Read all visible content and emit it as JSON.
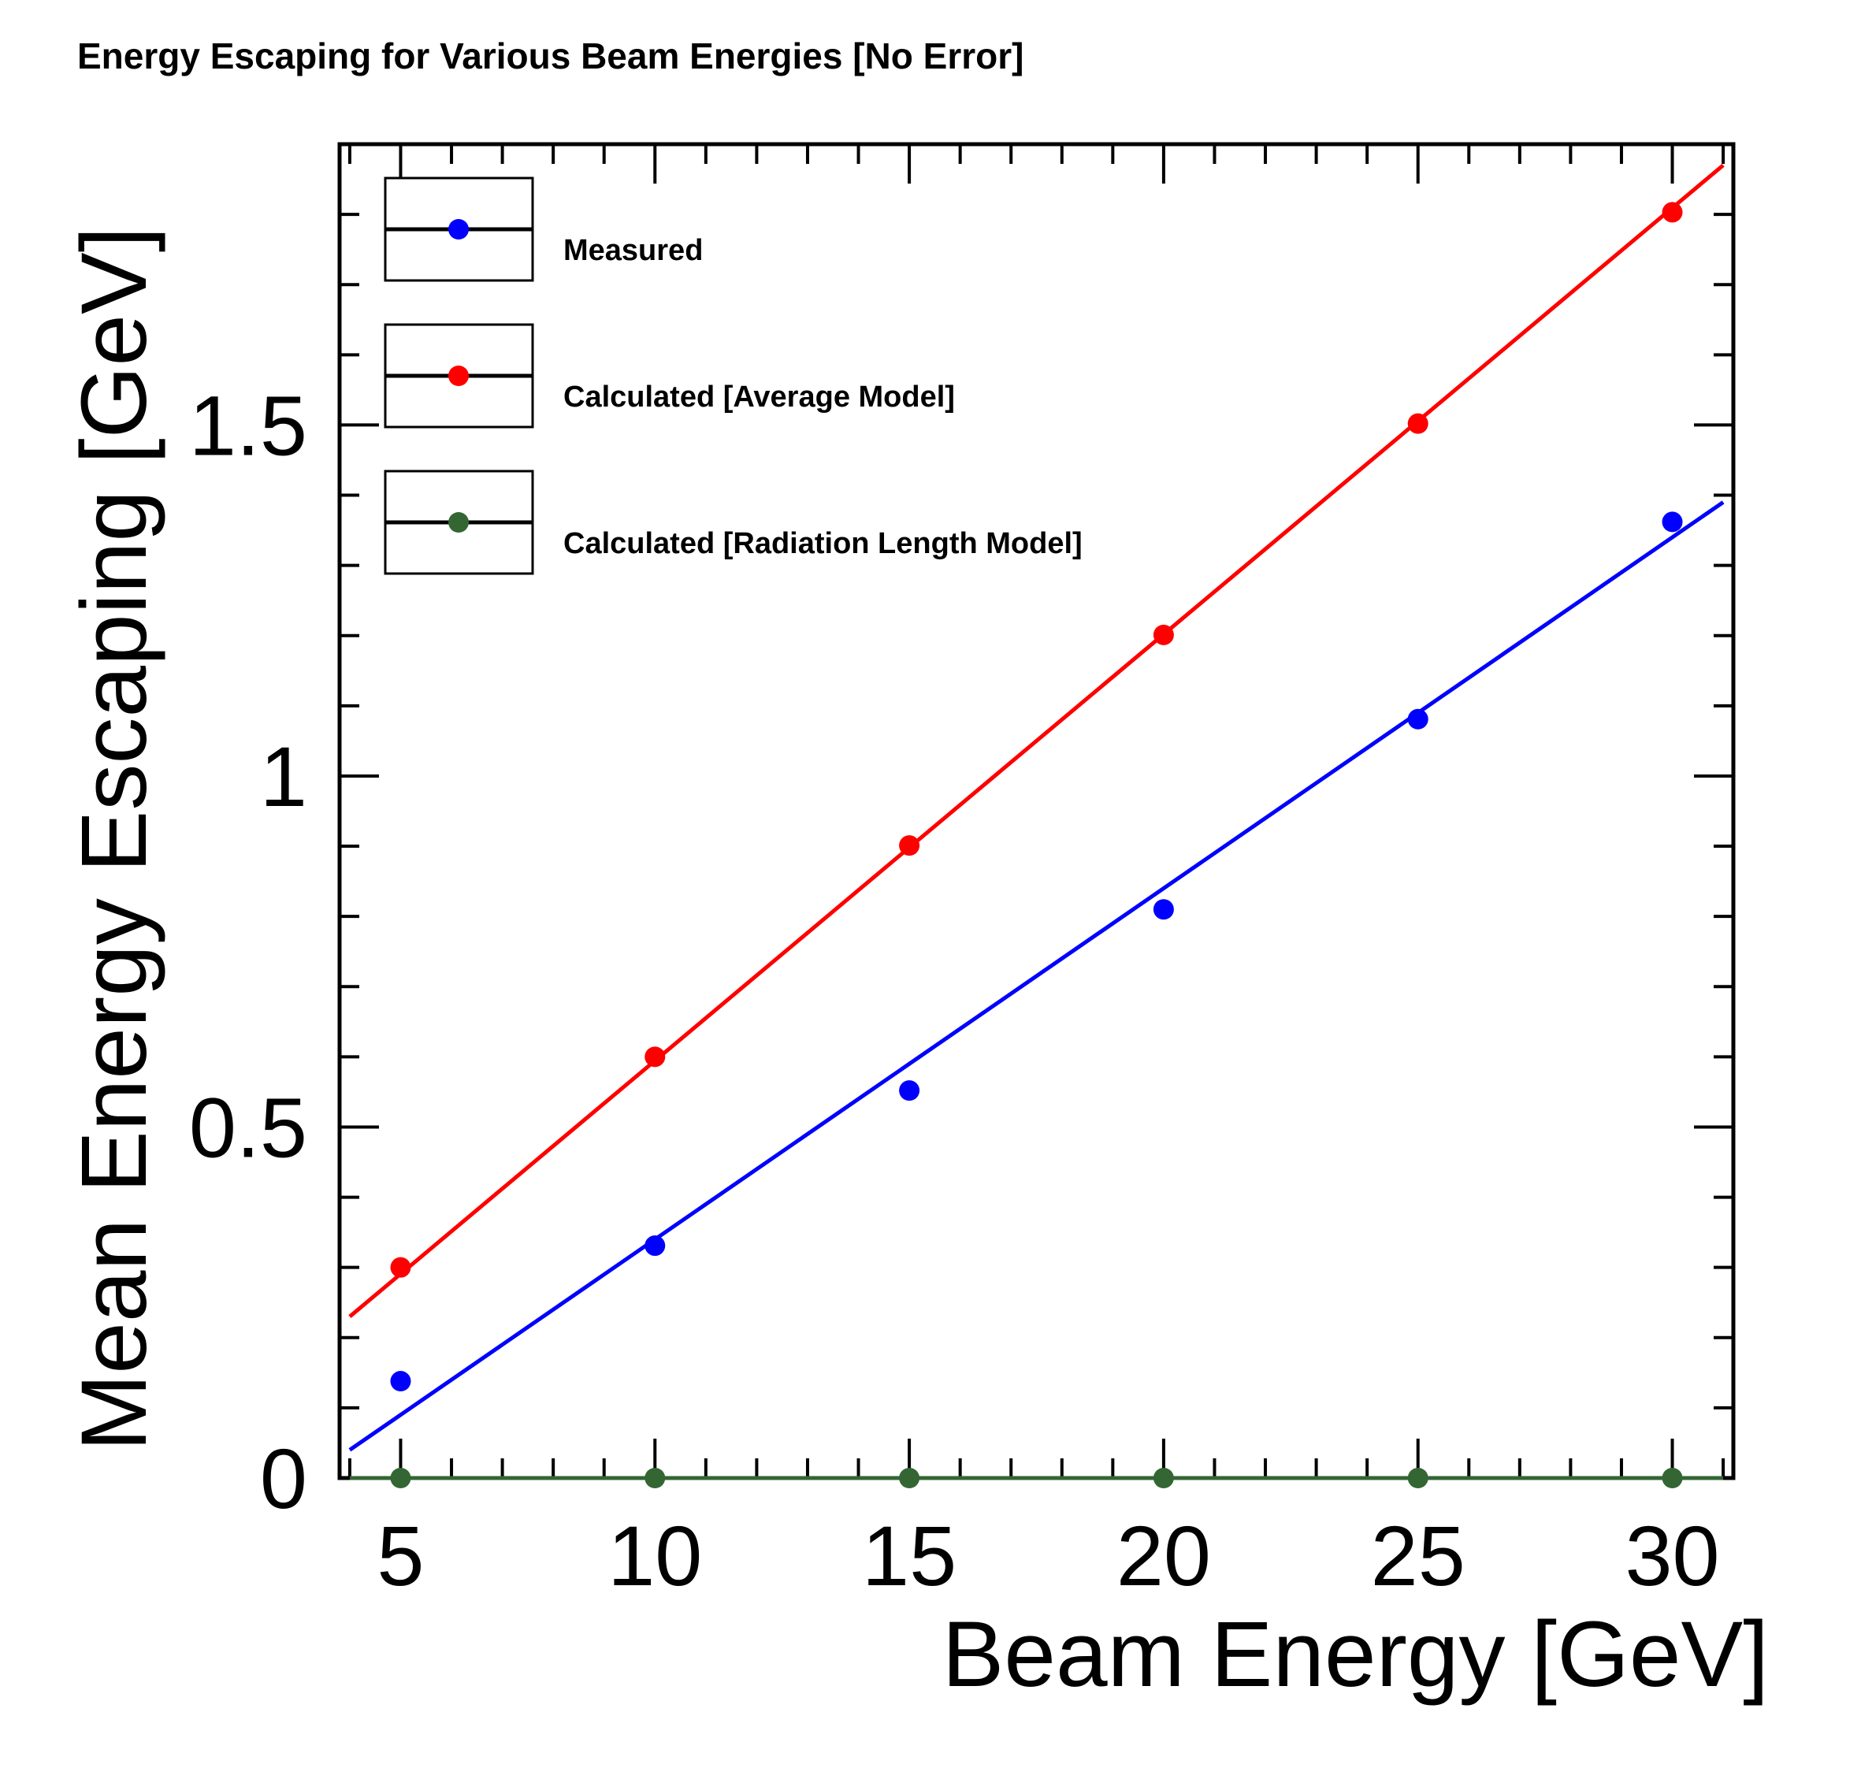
{
  "chart_data": {
    "type": "scatter",
    "title": "Energy Escaping for Various Beam Energies [No Error]",
    "xlabel": "Beam Energy [GeV]",
    "ylabel": "Mean Energy Escaping [GeV]",
    "xlim": [
      3.8,
      31.2
    ],
    "ylim": [
      0,
      1.9
    ],
    "x_ticks": [
      5,
      10,
      15,
      20,
      25,
      30
    ],
    "x_tick_labels": [
      "5",
      "10",
      "15",
      "20",
      "25",
      "30"
    ],
    "y_ticks": [
      0,
      0.5,
      1,
      1.5
    ],
    "y_tick_labels": [
      "0",
      "0.5",
      "1",
      "1.5"
    ],
    "legend_position": "top-left",
    "series": [
      {
        "name": "Measured",
        "color": "#0000ff",
        "x": [
          5,
          10,
          15,
          20,
          25,
          30
        ],
        "y": [
          0.138,
          0.331,
          0.552,
          0.81,
          1.081,
          1.362
        ],
        "fit_line": {
          "x": [
            4,
            31
          ],
          "y": [
            0.04,
            1.39
          ]
        }
      },
      {
        "name": "Calculated [Average Model]",
        "color": "#ff0000",
        "x": [
          5,
          10,
          15,
          20,
          25,
          30
        ],
        "y": [
          0.3,
          0.6,
          0.901,
          1.201,
          1.502,
          1.803
        ],
        "fit_line": {
          "x": [
            4,
            31
          ],
          "y": [
            0.23,
            1.87
          ]
        }
      },
      {
        "name": "Calculated [Radiation Length Model]",
        "color": "#336633",
        "x": [
          5,
          10,
          15,
          20,
          25,
          30
        ],
        "y": [
          0,
          0,
          0,
          0,
          0,
          0
        ],
        "fit_line": {
          "x": [
            4,
            31
          ],
          "y": [
            0,
            0
          ]
        }
      }
    ]
  }
}
